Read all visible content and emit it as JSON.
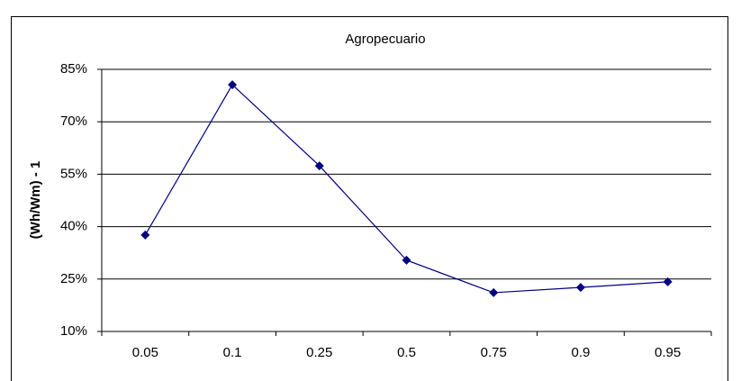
{
  "chart_data": {
    "type": "line",
    "title": "Agropecuario",
    "y_label": "(Wh/Wm) - 1",
    "categories": [
      "0.05",
      "0.1",
      "0.25",
      "0.5",
      "0.75",
      "0.9",
      "0.95"
    ],
    "series": [
      {
        "name": "Agropecuario",
        "color": "#000080",
        "values": [
          37.6,
          80.6,
          57.4,
          30.4,
          21.1,
          22.6,
          24.2
        ]
      }
    ],
    "ylim": [
      10,
      85
    ],
    "yticks": [
      {
        "value": 10,
        "label": "10%"
      },
      {
        "value": 25,
        "label": "25%"
      },
      {
        "value": 40,
        "label": "40%"
      },
      {
        "value": 55,
        "label": "55%"
      },
      {
        "value": 70,
        "label": "70%"
      },
      {
        "value": 85,
        "label": "85%"
      }
    ],
    "grid": true,
    "legend": false
  }
}
